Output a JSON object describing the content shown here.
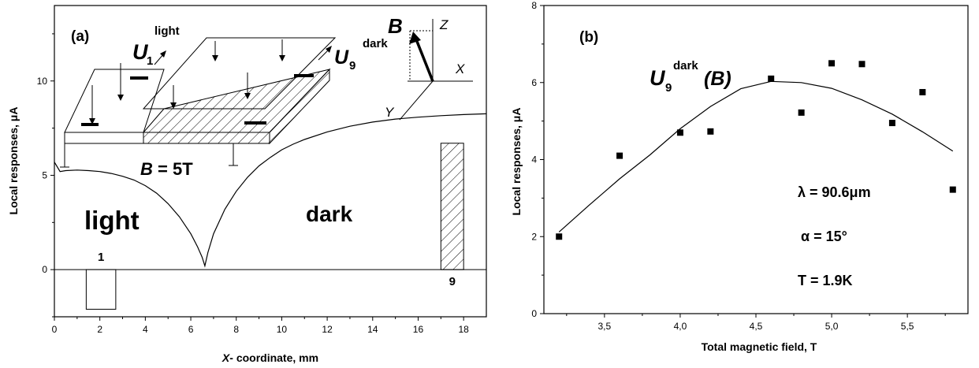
{
  "chart_data": [
    {
      "type": "line",
      "panel_label": "(a)",
      "xlabel_prefix": "X",
      "xlabel_rest": "- coordinate, mm",
      "ylabel": "Local responses, μA",
      "xlim": [
        0,
        19
      ],
      "ylim": [
        -2.5,
        14
      ],
      "xticks": [
        0,
        2,
        4,
        6,
        8,
        10,
        12,
        14,
        16,
        18
      ],
      "yticks": [
        0,
        5,
        10
      ],
      "curve": {
        "x": [
          0,
          0.25,
          0.5,
          1,
          1.5,
          2,
          2.5,
          3,
          3.5,
          4,
          4.5,
          5,
          5.5,
          6,
          6.3,
          6.5,
          6.62,
          6.75,
          7,
          7.5,
          8,
          8.5,
          9,
          9.5,
          10,
          10.5,
          11,
          12,
          13,
          14,
          15,
          16,
          17,
          18,
          19
        ],
        "y": [
          5.7,
          5.2,
          5.25,
          5.28,
          5.25,
          5.2,
          5.1,
          4.95,
          4.75,
          4.45,
          4.05,
          3.5,
          2.8,
          1.9,
          1.2,
          0.65,
          0.2,
          0.9,
          1.9,
          3.2,
          4.15,
          4.9,
          5.5,
          5.95,
          6.35,
          6.65,
          6.9,
          7.3,
          7.6,
          7.82,
          7.98,
          8.08,
          8.16,
          8.22,
          8.26
        ]
      },
      "bars": [
        {
          "label": "1",
          "x0": 1.4,
          "x1": 2.7,
          "y": -2.1,
          "hatched": false
        },
        {
          "label": "9",
          "x0": 17.0,
          "x1": 18.0,
          "y": 6.7,
          "hatched": true
        }
      ],
      "annotations": {
        "light": "light",
        "dark": "dark",
        "field_B": "B",
        "field_eq": " = 5T",
        "U": "U",
        "U1_sub": "1",
        "U1_sup": "light",
        "U9_sub": "9",
        "U9_sup": "dark",
        "axis_B": "B",
        "axis_Z": "Z",
        "axis_X": "X",
        "axis_Y": "Y"
      }
    },
    {
      "type": "scatter",
      "panel_label": "(b)",
      "xlabel": "Total magnetic field, T",
      "ylabel": "Local responses, μA",
      "xlim": [
        3.1,
        5.9
      ],
      "ylim": [
        0,
        8
      ],
      "xticks": [
        3.5,
        4.0,
        4.5,
        5.0,
        5.5
      ],
      "xtick_labels": [
        "3,5",
        "4,0",
        "4,5",
        "5,0",
        "5,5"
      ],
      "yticks": [
        0,
        2,
        4,
        6,
        8
      ],
      "points": {
        "x": [
          3.2,
          3.6,
          4.0,
          4.2,
          4.6,
          4.8,
          5.0,
          5.2,
          5.4,
          5.6,
          5.8
        ],
        "y": [
          2.0,
          4.1,
          4.7,
          4.73,
          6.1,
          5.22,
          6.5,
          6.48,
          4.95,
          5.75,
          3.22
        ]
      },
      "fit": {
        "x": [
          3.2,
          3.4,
          3.6,
          3.8,
          4.0,
          4.2,
          4.4,
          4.6,
          4.8,
          5.0,
          5.2,
          5.4,
          5.6,
          5.8
        ],
        "y": [
          2.12,
          2.82,
          3.5,
          4.12,
          4.8,
          5.38,
          5.84,
          6.03,
          6.0,
          5.85,
          5.55,
          5.18,
          4.72,
          4.22
        ]
      },
      "annotations": {
        "U": "U",
        "U_sub": "9",
        "U_sup": "dark",
        "U_arg": "(B)",
        "lambda": "λ = 90.6μm",
        "alpha": "α = 15°",
        "temperature": "T = 1.9K"
      }
    }
  ]
}
